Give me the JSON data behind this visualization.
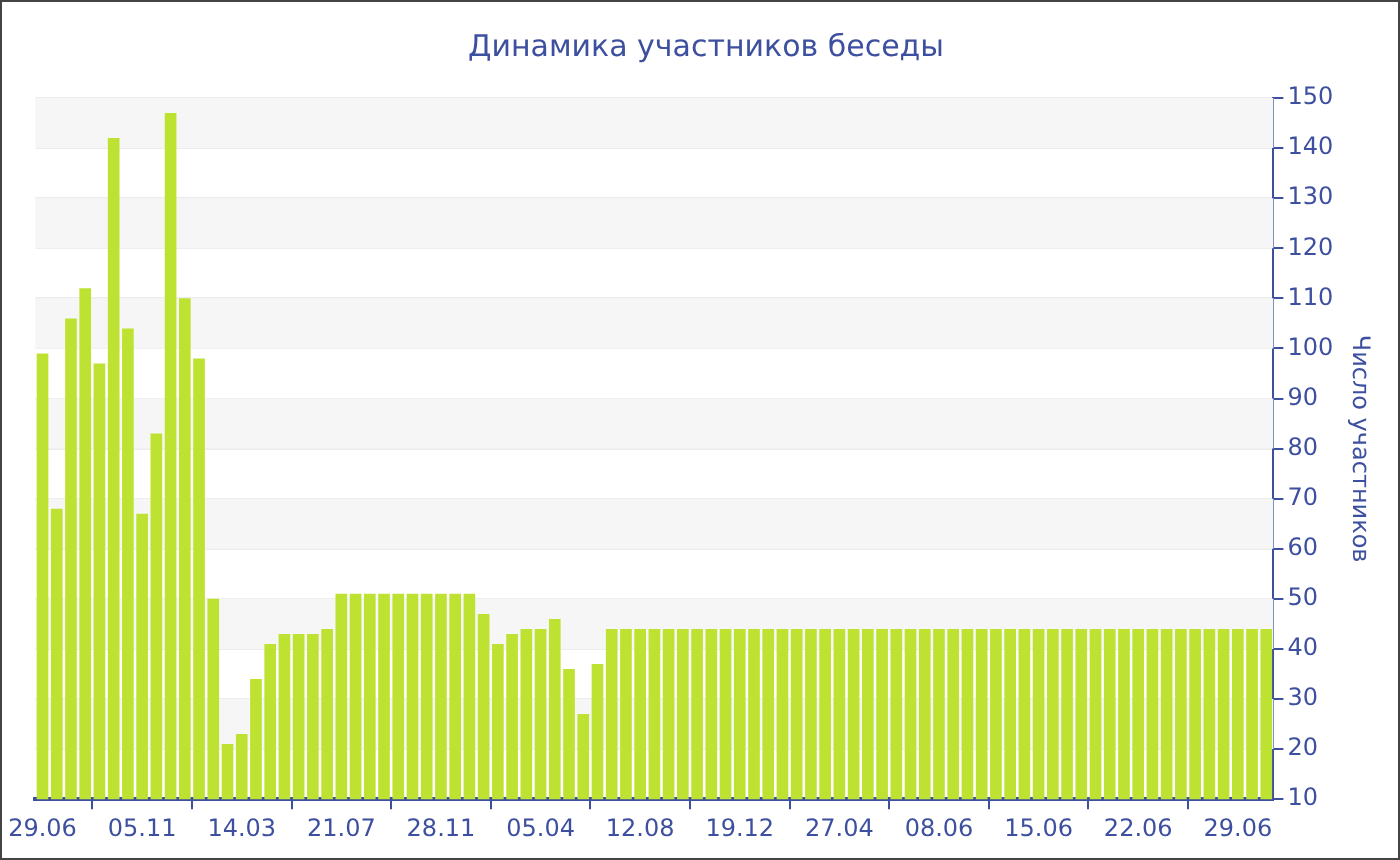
{
  "chart_data": {
    "type": "bar",
    "title": "Динамика участников беседы",
    "ylabel": "Число участников",
    "categories": [
      "29.06",
      null,
      null,
      null,
      null,
      null,
      null,
      "05.11",
      null,
      null,
      null,
      null,
      null,
      null,
      "14.03",
      null,
      null,
      null,
      null,
      null,
      null,
      "21.07",
      null,
      null,
      null,
      null,
      null,
      null,
      "28.11",
      null,
      null,
      null,
      null,
      null,
      null,
      "05.04",
      null,
      null,
      null,
      null,
      null,
      null,
      "12.08",
      null,
      null,
      null,
      null,
      null,
      null,
      "19.12",
      null,
      null,
      null,
      null,
      null,
      null,
      "27.04",
      null,
      null,
      null,
      null,
      null,
      null,
      "08.06",
      null,
      null,
      null,
      null,
      null,
      null,
      "15.06",
      null,
      null,
      null,
      null,
      null,
      null,
      "22.06",
      null,
      null,
      null,
      null,
      null,
      null,
      "29.06",
      null,
      null
    ],
    "values": [
      99,
      68,
      106,
      112,
      97,
      142,
      104,
      67,
      83,
      147,
      110,
      98,
      50,
      21,
      23,
      34,
      41,
      43,
      43,
      43,
      44,
      51,
      51,
      51,
      51,
      51,
      51,
      51,
      51,
      51,
      51,
      47,
      41,
      43,
      44,
      44,
      46,
      36,
      27,
      37,
      44,
      44,
      44,
      44,
      44,
      44,
      44,
      44,
      44,
      44,
      44,
      44,
      44,
      44,
      44,
      44,
      44,
      44,
      44,
      44,
      44,
      44,
      44,
      44,
      44,
      44,
      44,
      44,
      44,
      44,
      44,
      44,
      44,
      44,
      44,
      44,
      44,
      44,
      44,
      44,
      44,
      44,
      44,
      44,
      44,
      44,
      44
    ],
    "color": "#bde232",
    "ylim": [
      10,
      150
    ],
    "yticks": [
      10,
      20,
      30,
      40,
      50,
      60,
      70,
      80,
      90,
      100,
      110,
      120,
      130,
      140,
      150
    ],
    "grid": "y"
  }
}
